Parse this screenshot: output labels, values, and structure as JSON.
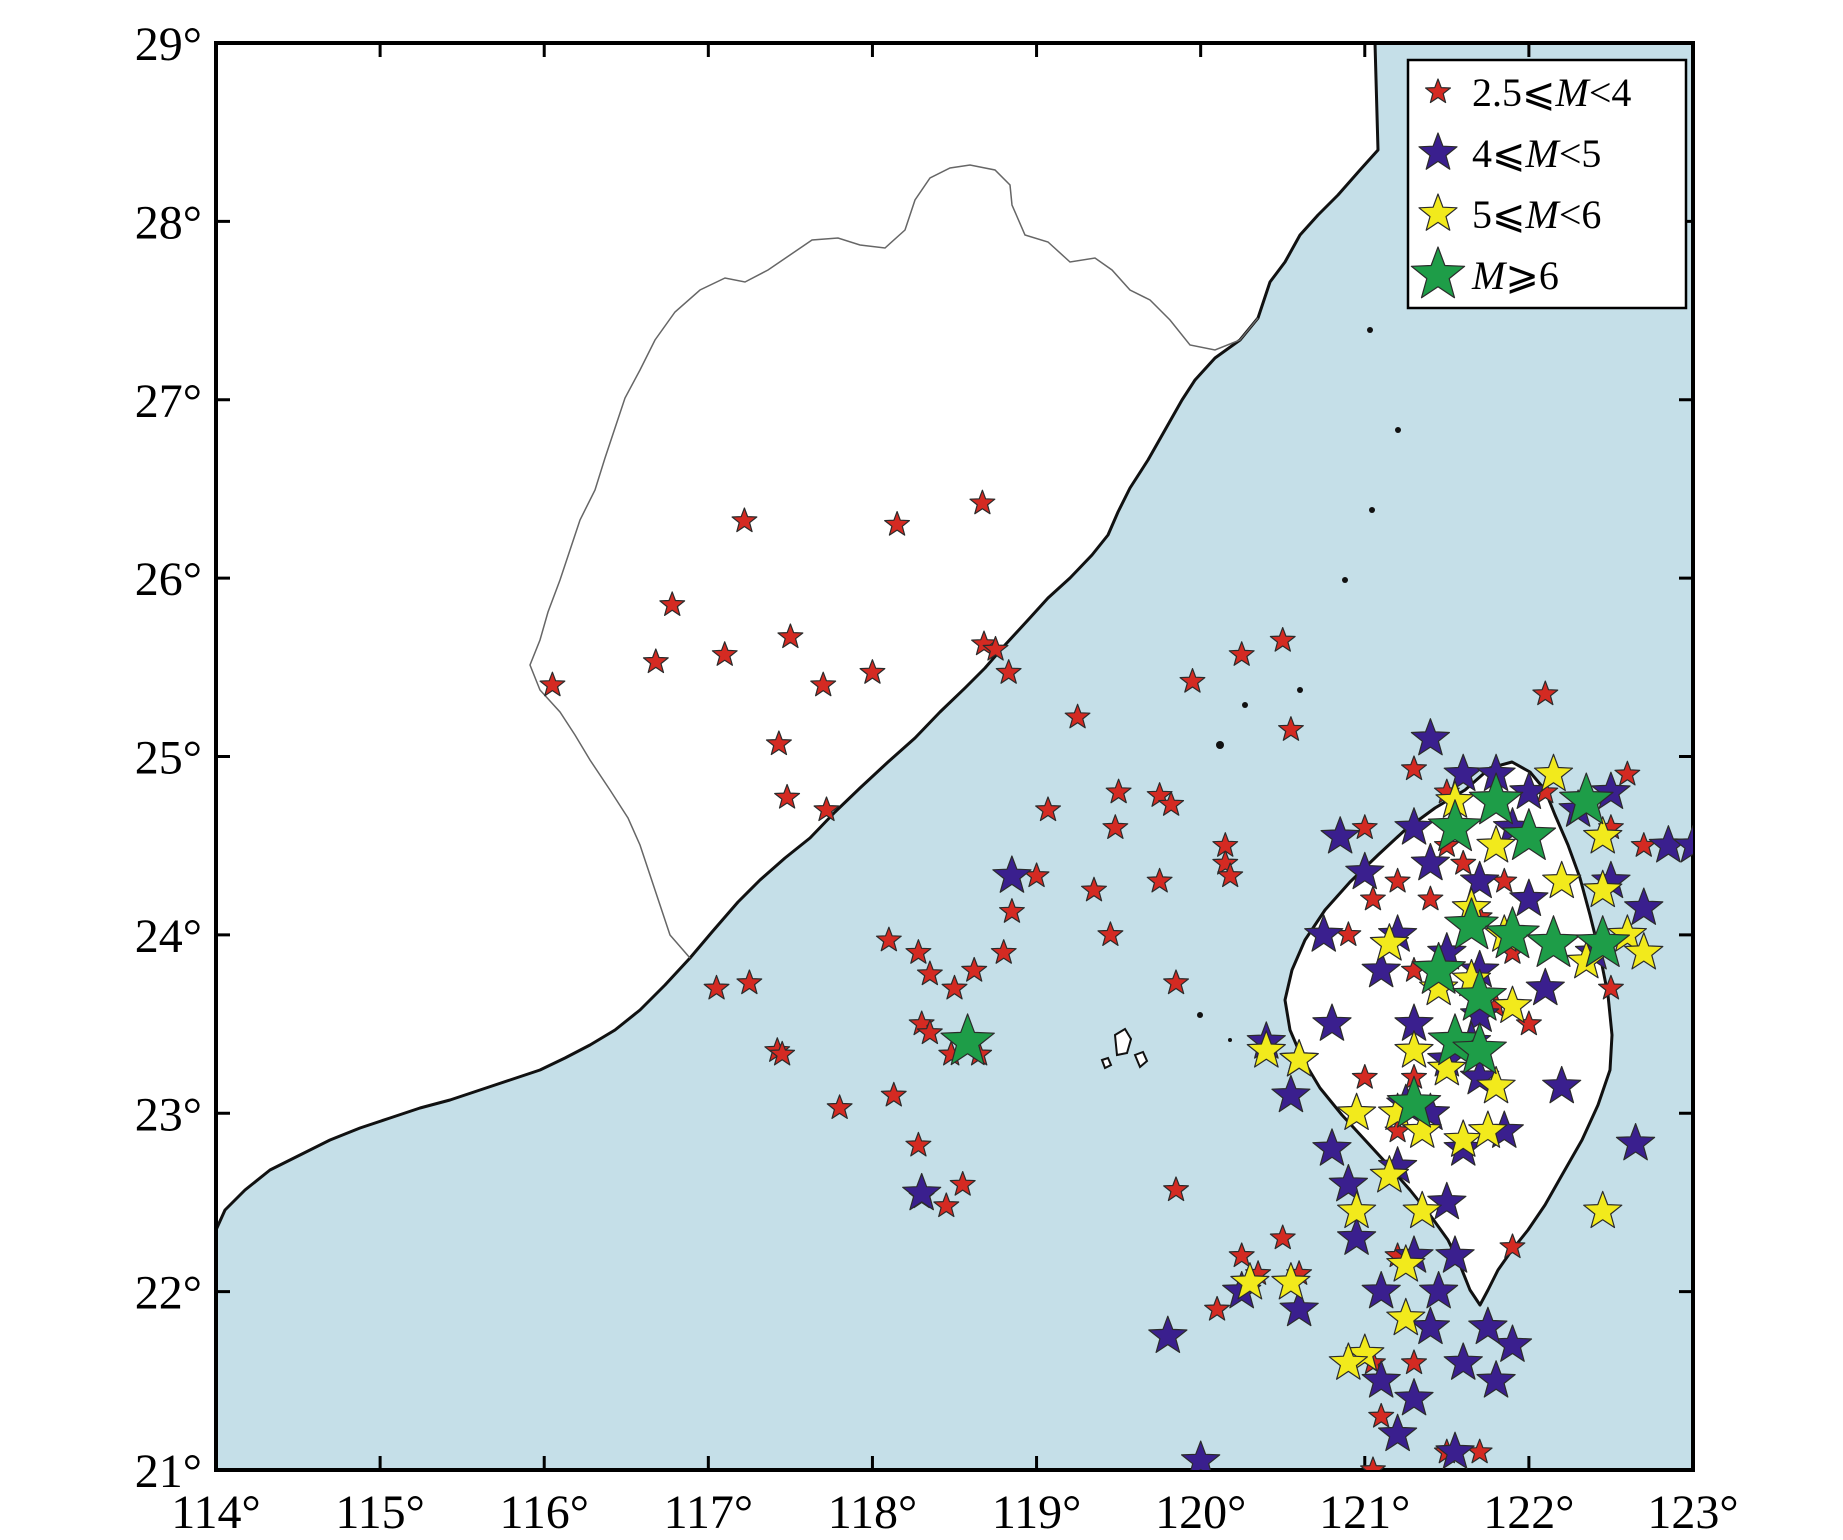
{
  "axes": {
    "x_ticks": [
      {
        "value": 114,
        "label": "114°"
      },
      {
        "value": 115,
        "label": "115°"
      },
      {
        "value": 116,
        "label": "116°"
      },
      {
        "value": 117,
        "label": "117°"
      },
      {
        "value": 118,
        "label": "118°"
      },
      {
        "value": 119,
        "label": "119°"
      },
      {
        "value": 120,
        "label": "120°"
      },
      {
        "value": 121,
        "label": "121°"
      },
      {
        "value": 122,
        "label": "122°"
      },
      {
        "value": 123,
        "label": "123°"
      }
    ],
    "y_ticks": [
      {
        "value": 21,
        "label": "21°"
      },
      {
        "value": 22,
        "label": "22°"
      },
      {
        "value": 23,
        "label": "23°"
      },
      {
        "value": 24,
        "label": "24°"
      },
      {
        "value": 25,
        "label": "25°"
      },
      {
        "value": 26,
        "label": "26°"
      },
      {
        "value": 27,
        "label": "27°"
      },
      {
        "value": 28,
        "label": "28°"
      },
      {
        "value": 29,
        "label": "29°"
      }
    ],
    "xlim": [
      114,
      123
    ],
    "ylim": [
      21,
      29
    ]
  },
  "colors": {
    "sea": "#c5dfe8",
    "land": "#ffffff",
    "coast": "#111111",
    "border": "#666666",
    "frame": "#000000"
  },
  "legend": {
    "position": "top-right",
    "entries": [
      {
        "class": "m25_4",
        "prefix": "2.5⩽",
        "var": "M",
        "suffix": "<4",
        "color": "#d42a22",
        "size": "small"
      },
      {
        "class": "m4_5",
        "prefix": "4⩽",
        "var": "M",
        "suffix": "<5",
        "color": "#3a1f8e",
        "size": "medium"
      },
      {
        "class": "m5_6",
        "prefix": "5⩽",
        "var": "M",
        "suffix": "<6",
        "color": "#f2ea1c",
        "size": "medium"
      },
      {
        "class": "m6",
        "prefix": "",
        "var": "M",
        "suffix": "⩾6",
        "color": "#1e9d48",
        "size": "large"
      }
    ]
  },
  "chart_data": {
    "type": "scatter",
    "x_unit": "longitude",
    "y_unit": "latitude",
    "series": [
      {
        "class": "m25_4",
        "points": [
          [
            116.05,
            25.4
          ],
          [
            116.68,
            25.53
          ],
          [
            116.78,
            25.85
          ],
          [
            117.1,
            25.57
          ],
          [
            117.22,
            26.32
          ],
          [
            117.5,
            25.67
          ],
          [
            117.7,
            25.4
          ],
          [
            118.0,
            25.47
          ],
          [
            118.15,
            26.3
          ],
          [
            118.67,
            26.42
          ],
          [
            118.68,
            25.63
          ],
          [
            118.75,
            25.6
          ],
          [
            118.83,
            25.47
          ],
          [
            117.43,
            25.07
          ],
          [
            117.48,
            24.77
          ],
          [
            117.72,
            24.7
          ],
          [
            117.05,
            23.7
          ],
          [
            117.25,
            23.73
          ],
          [
            117.42,
            23.35
          ],
          [
            117.45,
            23.33
          ],
          [
            118.1,
            23.97
          ],
          [
            118.28,
            23.9
          ],
          [
            118.35,
            23.78
          ],
          [
            118.5,
            23.7
          ],
          [
            118.62,
            23.8
          ],
          [
            118.8,
            23.9
          ],
          [
            118.3,
            23.5
          ],
          [
            118.35,
            23.45
          ],
          [
            118.48,
            23.33
          ],
          [
            118.65,
            23.33
          ],
          [
            117.8,
            23.03
          ],
          [
            118.13,
            23.1
          ],
          [
            118.28,
            22.82
          ],
          [
            118.3,
            22.53
          ],
          [
            118.45,
            22.48
          ],
          [
            118.55,
            22.6
          ],
          [
            118.85,
            24.13
          ],
          [
            119.0,
            24.33
          ],
          [
            119.07,
            24.7
          ],
          [
            119.35,
            24.25
          ],
          [
            119.45,
            24.0
          ],
          [
            119.48,
            24.6
          ],
          [
            119.5,
            24.8
          ],
          [
            119.75,
            24.3
          ],
          [
            119.75,
            24.78
          ],
          [
            119.82,
            24.73
          ],
          [
            119.85,
            23.73
          ],
          [
            119.95,
            25.42
          ],
          [
            120.15,
            24.4
          ],
          [
            120.15,
            24.5
          ],
          [
            120.18,
            24.33
          ],
          [
            120.25,
            25.57
          ],
          [
            120.5,
            25.65
          ],
          [
            120.55,
            25.15
          ],
          [
            119.25,
            25.22
          ],
          [
            119.85,
            22.57
          ],
          [
            121.5,
            24.8
          ],
          [
            121.0,
            24.6
          ],
          [
            121.2,
            24.3
          ],
          [
            121.4,
            24.2
          ],
          [
            120.9,
            24.0
          ],
          [
            121.05,
            24.2
          ],
          [
            121.3,
            23.8
          ],
          [
            121.5,
            24.5
          ],
          [
            121.7,
            24.1
          ],
          [
            121.8,
            23.6
          ],
          [
            121.9,
            23.9
          ],
          [
            122.1,
            24.8
          ],
          [
            122.5,
            24.6
          ],
          [
            122.6,
            24.9
          ],
          [
            122.0,
            23.5
          ],
          [
            122.5,
            23.7
          ],
          [
            121.2,
            22.9
          ],
          [
            121.4,
            23.0
          ],
          [
            121.0,
            23.2
          ],
          [
            121.3,
            23.2
          ],
          [
            120.5,
            22.3
          ],
          [
            120.6,
            22.1
          ],
          [
            120.35,
            22.1
          ],
          [
            120.25,
            22.2
          ],
          [
            120.1,
            21.9
          ],
          [
            121.2,
            22.2
          ],
          [
            121.5,
            21.1
          ],
          [
            121.7,
            21.1
          ],
          [
            121.05,
            21.0
          ],
          [
            121.1,
            21.3
          ],
          [
            121.05,
            21.6
          ],
          [
            121.3,
            21.6
          ],
          [
            121.9,
            22.25
          ],
          [
            122.1,
            25.35
          ],
          [
            121.3,
            24.93
          ],
          [
            122.7,
            24.5
          ],
          [
            121.6,
            24.4
          ],
          [
            121.85,
            24.3
          ]
        ]
      },
      {
        "class": "m4_5",
        "points": [
          [
            118.85,
            24.33
          ],
          [
            118.3,
            22.55
          ],
          [
            120.85,
            24.55
          ],
          [
            121.4,
            25.1
          ],
          [
            121.6,
            24.9
          ],
          [
            121.8,
            24.9
          ],
          [
            122.0,
            24.8
          ],
          [
            122.3,
            24.7
          ],
          [
            122.5,
            24.8
          ],
          [
            122.85,
            24.5
          ],
          [
            123.0,
            24.5
          ],
          [
            122.7,
            24.15
          ],
          [
            122.4,
            23.9
          ],
          [
            122.2,
            23.15
          ],
          [
            122.65,
            22.83
          ],
          [
            121.3,
            24.6
          ],
          [
            121.4,
            24.4
          ],
          [
            121.7,
            24.3
          ],
          [
            121.9,
            24.6
          ],
          [
            122.0,
            24.2
          ],
          [
            121.5,
            23.9
          ],
          [
            121.7,
            23.8
          ],
          [
            121.3,
            23.5
          ],
          [
            121.5,
            23.3
          ],
          [
            121.7,
            23.2
          ],
          [
            121.4,
            23.0
          ],
          [
            121.6,
            22.8
          ],
          [
            121.2,
            22.7
          ],
          [
            121.5,
            22.5
          ],
          [
            121.3,
            22.2
          ],
          [
            121.1,
            22.0
          ],
          [
            121.4,
            21.8
          ],
          [
            121.6,
            21.6
          ],
          [
            121.8,
            21.5
          ],
          [
            121.9,
            21.7
          ],
          [
            121.3,
            21.4
          ],
          [
            121.1,
            21.5
          ],
          [
            121.2,
            21.2
          ],
          [
            121.55,
            21.1
          ],
          [
            120.9,
            22.6
          ],
          [
            120.8,
            22.8
          ],
          [
            120.6,
            23.3
          ],
          [
            120.4,
            23.4
          ],
          [
            120.55,
            23.1
          ],
          [
            120.8,
            23.5
          ],
          [
            121.1,
            23.8
          ],
          [
            120.75,
            24.0
          ],
          [
            121.2,
            24.0
          ],
          [
            121.0,
            24.35
          ],
          [
            122.1,
            23.7
          ],
          [
            121.7,
            23.55
          ],
          [
            121.85,
            22.9
          ],
          [
            121.55,
            22.2
          ],
          [
            121.45,
            22.0
          ],
          [
            121.75,
            21.8
          ],
          [
            120.6,
            21.9
          ],
          [
            120.95,
            22.3
          ],
          [
            120.25,
            22.0
          ],
          [
            119.8,
            21.75
          ],
          [
            120.0,
            21.05
          ],
          [
            121.25,
            23.05
          ],
          [
            121.65,
            23.4
          ],
          [
            122.5,
            24.3
          ]
        ]
      },
      {
        "class": "m5_6",
        "points": [
          [
            121.15,
            23.95
          ],
          [
            121.55,
            24.75
          ],
          [
            121.8,
            24.5
          ],
          [
            122.15,
            24.9
          ],
          [
            122.2,
            24.3
          ],
          [
            122.45,
            24.55
          ],
          [
            122.45,
            24.25
          ],
          [
            122.6,
            24.0
          ],
          [
            122.35,
            23.85
          ],
          [
            122.7,
            23.9
          ],
          [
            121.45,
            23.7
          ],
          [
            121.65,
            23.75
          ],
          [
            121.9,
            23.6
          ],
          [
            121.3,
            23.35
          ],
          [
            121.5,
            23.25
          ],
          [
            121.8,
            23.15
          ],
          [
            121.2,
            23.0
          ],
          [
            121.35,
            22.9
          ],
          [
            121.6,
            22.85
          ],
          [
            121.75,
            22.9
          ],
          [
            121.15,
            22.65
          ],
          [
            121.35,
            22.45
          ],
          [
            120.95,
            22.45
          ],
          [
            121.25,
            22.15
          ],
          [
            121.25,
            21.85
          ],
          [
            121.0,
            21.65
          ],
          [
            120.9,
            21.6
          ],
          [
            120.55,
            22.05
          ],
          [
            120.3,
            22.05
          ],
          [
            120.4,
            23.35
          ],
          [
            120.6,
            23.3
          ],
          [
            120.95,
            23.0
          ],
          [
            121.85,
            24.0
          ],
          [
            122.45,
            22.45
          ],
          [
            121.65,
            24.15
          ]
        ]
      },
      {
        "class": "m6",
        "points": [
          [
            118.58,
            23.4
          ],
          [
            121.55,
            24.6
          ],
          [
            121.8,
            24.75
          ],
          [
            122.0,
            24.55
          ],
          [
            122.35,
            24.75
          ],
          [
            121.65,
            24.05
          ],
          [
            121.9,
            24.0
          ],
          [
            122.15,
            23.95
          ],
          [
            122.45,
            23.95
          ],
          [
            121.45,
            23.8
          ],
          [
            121.7,
            23.65
          ],
          [
            121.55,
            23.4
          ],
          [
            121.7,
            23.35
          ],
          [
            121.3,
            23.05
          ]
        ]
      }
    ]
  }
}
